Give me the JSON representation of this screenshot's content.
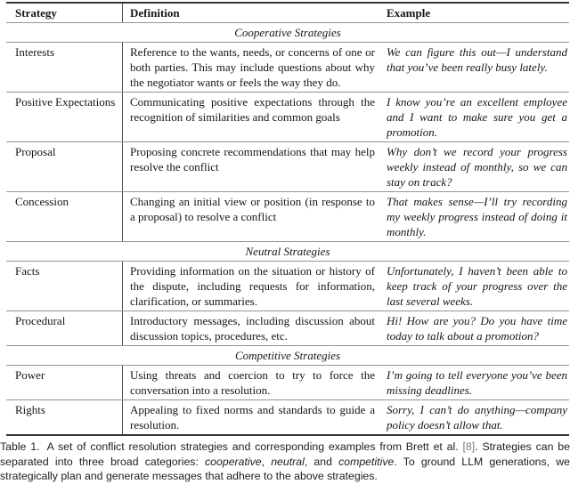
{
  "header": {
    "strategy": "Strategy",
    "definition": "Definition",
    "example": "Example"
  },
  "sections": [
    {
      "title": "Cooperative Strategies",
      "rows": [
        {
          "strategy": "Interests",
          "definition": "Reference to the wants, needs, or concerns of one or both parties. This may include questions about why the negotiator wants or feels the way they do.",
          "example": "We can figure this out—I understand that you’ve been really busy lately."
        },
        {
          "strategy": "Positive Expectations",
          "definition": "Communicating positive expectations through the recognition of similarities and common goals",
          "example": "I know you’re an excellent employee and I want to make sure you get a promotion."
        },
        {
          "strategy": "Proposal",
          "definition": "Proposing concrete recommendations that may help resolve the conflict",
          "example": "Why don’t we record your progress weekly instead of monthly, so we can stay on track?"
        },
        {
          "strategy": "Concession",
          "definition": "Changing an initial view or position (in response to a proposal) to resolve a conflict",
          "example": "That makes sense—I’ll try recording my weekly progress instead of doing it monthly."
        }
      ]
    },
    {
      "title": "Neutral Strategies",
      "rows": [
        {
          "strategy": "Facts",
          "definition": "Providing information on the situation or history of the dispute, including requests for information, clarification, or summaries.",
          "example": "Unfortunately, I haven’t been able to keep track of your progress over the last several weeks."
        },
        {
          "strategy": "Procedural",
          "definition": "Introductory messages, including discussion about discussion topics, procedures, etc.",
          "example": "Hi! How are you? Do you have time today to talk about a promotion?"
        }
      ]
    },
    {
      "title": "Competitive Strategies",
      "rows": [
        {
          "strategy": "Power",
          "definition": "Using threats and coercion to try to force the conversation into a resolution.",
          "example": "I’m going to tell everyone you’ve been missing deadlines."
        },
        {
          "strategy": "Rights",
          "definition": "Appealing to fixed norms and standards to guide a resolution.",
          "example": "Sorry, I can’t do anything—company policy doesn’t allow that."
        }
      ]
    }
  ],
  "caption": {
    "label": "Table 1.",
    "part1": " A set of conflict resolution strategies and corresponding examples from Brett et al. ",
    "cite": "[8]",
    "part2": ". Strategies can be separated into three broad categories: ",
    "italic1": "cooperative",
    "sep1": ", ",
    "italic2": "neutral",
    "sep2": ", and ",
    "italic3": "competitive",
    "part3": ". To ground LLM generations, we strategically plan and generate messages that adhere to the above strategies."
  }
}
